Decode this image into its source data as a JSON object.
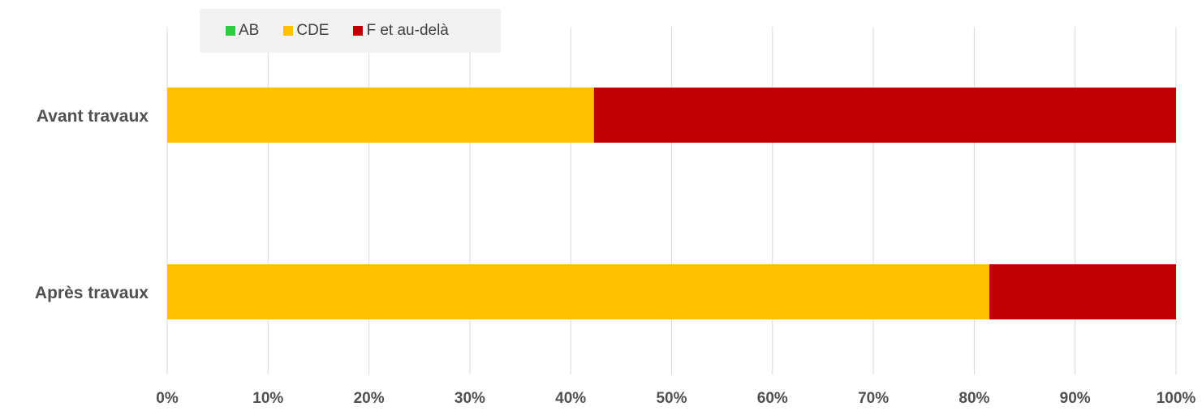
{
  "chart_data": {
    "type": "bar",
    "orientation": "horizontal",
    "stacked": true,
    "normalized": true,
    "categories": [
      "Avant travaux",
      "Après travaux"
    ],
    "series": [
      {
        "name": "AB",
        "color": "#2ecc40",
        "values": [
          0,
          0
        ]
      },
      {
        "name": "CDE",
        "color": "#ffc000",
        "values": [
          42.3,
          81.5
        ]
      },
      {
        "name": "F et au-delà",
        "color": "#c00000",
        "values": [
          57.7,
          18.5
        ]
      }
    ],
    "xlim": [
      0,
      100
    ],
    "x_ticks": [
      "0%",
      "10%",
      "20%",
      "30%",
      "40%",
      "50%",
      "60%",
      "70%",
      "80%",
      "90%",
      "100%"
    ],
    "title": "",
    "xlabel": "",
    "ylabel": "",
    "grid": "vertical",
    "legend_position": "top-left"
  }
}
